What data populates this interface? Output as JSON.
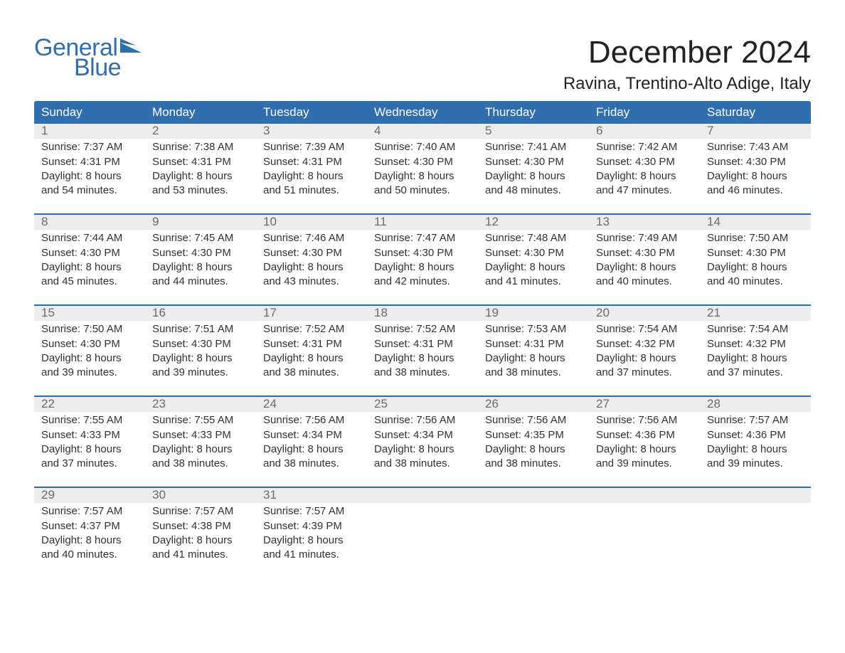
{
  "brand": {
    "part1": "General",
    "part2": "Blue"
  },
  "colors": {
    "brand_blue": "#2f6fb0",
    "header_bg": "#2f6fb0",
    "header_text": "#ffffff",
    "daynum_bg": "#ececec",
    "daynum_text": "#6b6b6b",
    "body_text": "#333333",
    "page_bg": "#ffffff",
    "week_divider": "#2f6fb0"
  },
  "title": "December 2024",
  "location": "Ravina, Trentino-Alto Adige, Italy",
  "weekdays": [
    "Sunday",
    "Monday",
    "Tuesday",
    "Wednesday",
    "Thursday",
    "Friday",
    "Saturday"
  ],
  "weeks": [
    {
      "days": [
        {
          "num": "1",
          "sunrise": "Sunrise: 7:37 AM",
          "sunset": "Sunset: 4:31 PM",
          "dl1": "Daylight: 8 hours",
          "dl2": "and 54 minutes."
        },
        {
          "num": "2",
          "sunrise": "Sunrise: 7:38 AM",
          "sunset": "Sunset: 4:31 PM",
          "dl1": "Daylight: 8 hours",
          "dl2": "and 53 minutes."
        },
        {
          "num": "3",
          "sunrise": "Sunrise: 7:39 AM",
          "sunset": "Sunset: 4:31 PM",
          "dl1": "Daylight: 8 hours",
          "dl2": "and 51 minutes."
        },
        {
          "num": "4",
          "sunrise": "Sunrise: 7:40 AM",
          "sunset": "Sunset: 4:30 PM",
          "dl1": "Daylight: 8 hours",
          "dl2": "and 50 minutes."
        },
        {
          "num": "5",
          "sunrise": "Sunrise: 7:41 AM",
          "sunset": "Sunset: 4:30 PM",
          "dl1": "Daylight: 8 hours",
          "dl2": "and 48 minutes."
        },
        {
          "num": "6",
          "sunrise": "Sunrise: 7:42 AM",
          "sunset": "Sunset: 4:30 PM",
          "dl1": "Daylight: 8 hours",
          "dl2": "and 47 minutes."
        },
        {
          "num": "7",
          "sunrise": "Sunrise: 7:43 AM",
          "sunset": "Sunset: 4:30 PM",
          "dl1": "Daylight: 8 hours",
          "dl2": "and 46 minutes."
        }
      ]
    },
    {
      "days": [
        {
          "num": "8",
          "sunrise": "Sunrise: 7:44 AM",
          "sunset": "Sunset: 4:30 PM",
          "dl1": "Daylight: 8 hours",
          "dl2": "and 45 minutes."
        },
        {
          "num": "9",
          "sunrise": "Sunrise: 7:45 AM",
          "sunset": "Sunset: 4:30 PM",
          "dl1": "Daylight: 8 hours",
          "dl2": "and 44 minutes."
        },
        {
          "num": "10",
          "sunrise": "Sunrise: 7:46 AM",
          "sunset": "Sunset: 4:30 PM",
          "dl1": "Daylight: 8 hours",
          "dl2": "and 43 minutes."
        },
        {
          "num": "11",
          "sunrise": "Sunrise: 7:47 AM",
          "sunset": "Sunset: 4:30 PM",
          "dl1": "Daylight: 8 hours",
          "dl2": "and 42 minutes."
        },
        {
          "num": "12",
          "sunrise": "Sunrise: 7:48 AM",
          "sunset": "Sunset: 4:30 PM",
          "dl1": "Daylight: 8 hours",
          "dl2": "and 41 minutes."
        },
        {
          "num": "13",
          "sunrise": "Sunrise: 7:49 AM",
          "sunset": "Sunset: 4:30 PM",
          "dl1": "Daylight: 8 hours",
          "dl2": "and 40 minutes."
        },
        {
          "num": "14",
          "sunrise": "Sunrise: 7:50 AM",
          "sunset": "Sunset: 4:30 PM",
          "dl1": "Daylight: 8 hours",
          "dl2": "and 40 minutes."
        }
      ]
    },
    {
      "days": [
        {
          "num": "15",
          "sunrise": "Sunrise: 7:50 AM",
          "sunset": "Sunset: 4:30 PM",
          "dl1": "Daylight: 8 hours",
          "dl2": "and 39 minutes."
        },
        {
          "num": "16",
          "sunrise": "Sunrise: 7:51 AM",
          "sunset": "Sunset: 4:30 PM",
          "dl1": "Daylight: 8 hours",
          "dl2": "and 39 minutes."
        },
        {
          "num": "17",
          "sunrise": "Sunrise: 7:52 AM",
          "sunset": "Sunset: 4:31 PM",
          "dl1": "Daylight: 8 hours",
          "dl2": "and 38 minutes."
        },
        {
          "num": "18",
          "sunrise": "Sunrise: 7:52 AM",
          "sunset": "Sunset: 4:31 PM",
          "dl1": "Daylight: 8 hours",
          "dl2": "and 38 minutes."
        },
        {
          "num": "19",
          "sunrise": "Sunrise: 7:53 AM",
          "sunset": "Sunset: 4:31 PM",
          "dl1": "Daylight: 8 hours",
          "dl2": "and 38 minutes."
        },
        {
          "num": "20",
          "sunrise": "Sunrise: 7:54 AM",
          "sunset": "Sunset: 4:32 PM",
          "dl1": "Daylight: 8 hours",
          "dl2": "and 37 minutes."
        },
        {
          "num": "21",
          "sunrise": "Sunrise: 7:54 AM",
          "sunset": "Sunset: 4:32 PM",
          "dl1": "Daylight: 8 hours",
          "dl2": "and 37 minutes."
        }
      ]
    },
    {
      "days": [
        {
          "num": "22",
          "sunrise": "Sunrise: 7:55 AM",
          "sunset": "Sunset: 4:33 PM",
          "dl1": "Daylight: 8 hours",
          "dl2": "and 37 minutes."
        },
        {
          "num": "23",
          "sunrise": "Sunrise: 7:55 AM",
          "sunset": "Sunset: 4:33 PM",
          "dl1": "Daylight: 8 hours",
          "dl2": "and 38 minutes."
        },
        {
          "num": "24",
          "sunrise": "Sunrise: 7:56 AM",
          "sunset": "Sunset: 4:34 PM",
          "dl1": "Daylight: 8 hours",
          "dl2": "and 38 minutes."
        },
        {
          "num": "25",
          "sunrise": "Sunrise: 7:56 AM",
          "sunset": "Sunset: 4:34 PM",
          "dl1": "Daylight: 8 hours",
          "dl2": "and 38 minutes."
        },
        {
          "num": "26",
          "sunrise": "Sunrise: 7:56 AM",
          "sunset": "Sunset: 4:35 PM",
          "dl1": "Daylight: 8 hours",
          "dl2": "and 38 minutes."
        },
        {
          "num": "27",
          "sunrise": "Sunrise: 7:56 AM",
          "sunset": "Sunset: 4:36 PM",
          "dl1": "Daylight: 8 hours",
          "dl2": "and 39 minutes."
        },
        {
          "num": "28",
          "sunrise": "Sunrise: 7:57 AM",
          "sunset": "Sunset: 4:36 PM",
          "dl1": "Daylight: 8 hours",
          "dl2": "and 39 minutes."
        }
      ]
    },
    {
      "days": [
        {
          "num": "29",
          "sunrise": "Sunrise: 7:57 AM",
          "sunset": "Sunset: 4:37 PM",
          "dl1": "Daylight: 8 hours",
          "dl2": "and 40 minutes."
        },
        {
          "num": "30",
          "sunrise": "Sunrise: 7:57 AM",
          "sunset": "Sunset: 4:38 PM",
          "dl1": "Daylight: 8 hours",
          "dl2": "and 41 minutes."
        },
        {
          "num": "31",
          "sunrise": "Sunrise: 7:57 AM",
          "sunset": "Sunset: 4:39 PM",
          "dl1": "Daylight: 8 hours",
          "dl2": "and 41 minutes."
        },
        {
          "num": "",
          "sunrise": "",
          "sunset": "",
          "dl1": "",
          "dl2": ""
        },
        {
          "num": "",
          "sunrise": "",
          "sunset": "",
          "dl1": "",
          "dl2": ""
        },
        {
          "num": "",
          "sunrise": "",
          "sunset": "",
          "dl1": "",
          "dl2": ""
        },
        {
          "num": "",
          "sunrise": "",
          "sunset": "",
          "dl1": "",
          "dl2": ""
        }
      ]
    }
  ]
}
